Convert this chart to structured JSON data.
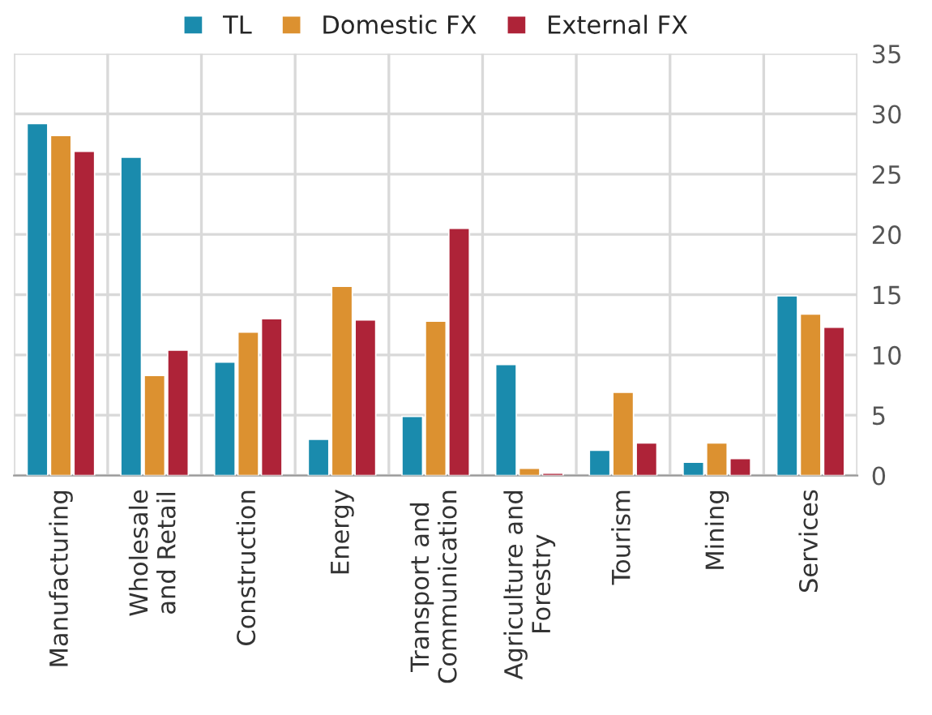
{
  "chart_data": {
    "type": "bar",
    "categories": [
      "Manufacturing",
      "Wholesale\nand Retail",
      "Construction",
      "Energy",
      "Transport and\nCommunication",
      "Agriculture and\nForestry",
      "Tourism",
      "Mining",
      "Services"
    ],
    "series": [
      {
        "name": "TL",
        "color": "#1a8bad",
        "values": [
          29.2,
          26.4,
          9.4,
          3.0,
          4.9,
          9.2,
          2.1,
          1.1,
          14.9
        ]
      },
      {
        "name": "Domestic FX",
        "color": "#dc9130",
        "values": [
          28.2,
          8.3,
          11.9,
          15.7,
          12.8,
          0.6,
          6.9,
          2.7,
          13.4
        ]
      },
      {
        "name": "External FX",
        "color": "#ae2338",
        "values": [
          26.9,
          10.4,
          13.0,
          12.9,
          20.5,
          0.2,
          2.7,
          1.4,
          12.3
        ]
      }
    ],
    "ylim": [
      0,
      35
    ],
    "yticks": [
      0,
      5,
      10,
      15,
      20,
      25,
      30,
      35
    ],
    "grid": true,
    "legend": "top"
  }
}
